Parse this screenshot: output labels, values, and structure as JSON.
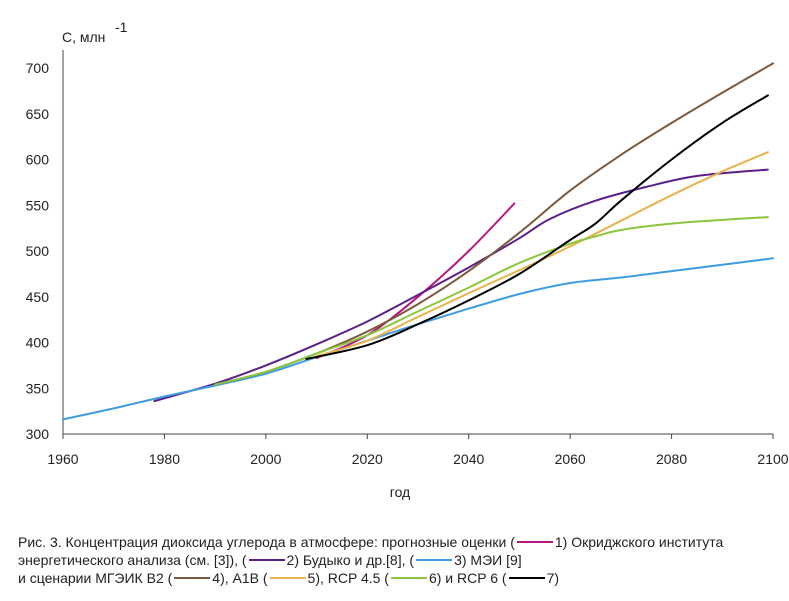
{
  "chart_data": {
    "type": "line",
    "ylabel": "С, млн",
    "ylabel_sup": "-1",
    "xlabel": "год",
    "xlim": [
      1960,
      2100
    ],
    "ylim": [
      300,
      700
    ],
    "xticks": [
      1960,
      1980,
      2000,
      2020,
      2040,
      2060,
      2080,
      2100
    ],
    "yticks": [
      300,
      350,
      400,
      450,
      500,
      550,
      600,
      650,
      700
    ],
    "grid": false,
    "series": [
      {
        "id": "s1",
        "color": "#b5177e",
        "x": [
          2010,
          2020,
          2030,
          2040,
          2049
        ],
        "y": [
          383,
          408,
          450,
          500,
          552
        ]
      },
      {
        "id": "s2",
        "color": "#5b1f8a",
        "x": [
          1978,
          1990,
          2000,
          2010,
          2020,
          2030,
          2040,
          2050,
          2056,
          2065,
          2075,
          2085,
          2099
        ],
        "y": [
          336,
          355,
          375,
          398,
          423,
          452,
          482,
          514,
          535,
          555,
          570,
          582,
          589
        ]
      },
      {
        "id": "s3",
        "color": "#3d9de0",
        "x": [
          1960,
          1970,
          1980,
          1990,
          2000,
          2010,
          2020,
          2030,
          2040,
          2050,
          2060,
          2070,
          2080,
          2090,
          2100
        ],
        "y": [
          316,
          328,
          341,
          353,
          366,
          384,
          402,
          420,
          437,
          453,
          465,
          471,
          478,
          485,
          492
        ]
      },
      {
        "id": "s4",
        "color": "#7b5a3c",
        "x": [
          1990,
          2000,
          2010,
          2020,
          2030,
          2040,
          2050,
          2060,
          2070,
          2080,
          2090,
          2100
        ],
        "y": [
          354,
          368,
          388,
          412,
          442,
          478,
          520,
          566,
          605,
          640,
          673,
          705
        ]
      },
      {
        "id": "s5",
        "color": "#e8b34a",
        "x": [
          2010,
          2020,
          2030,
          2040,
          2050,
          2060,
          2070,
          2080,
          2090,
          2099
        ],
        "y": [
          385,
          402,
          428,
          454,
          479,
          505,
          533,
          561,
          587,
          608
        ]
      },
      {
        "id": "s6",
        "color": "#8cc63f",
        "x": [
          1990,
          2000,
          2010,
          2020,
          2030,
          2040,
          2050,
          2060,
          2065,
          2070,
          2080,
          2090,
          2099
        ],
        "y": [
          354,
          368,
          388,
          408,
          434,
          460,
          487,
          508,
          516,
          523,
          530,
          534,
          537
        ]
      },
      {
        "id": "s7",
        "color": "#000000",
        "x": [
          2008,
          2020,
          2030,
          2040,
          2050,
          2060,
          2065,
          2070,
          2080,
          2090,
          2099
        ],
        "y": [
          382,
          397,
          420,
          446,
          475,
          512,
          530,
          555,
          600,
          640,
          670
        ]
      }
    ]
  },
  "caption": {
    "p1": "Рис. 3. Концентрация диоксида углерода в атмосфере: прогнозные оценки (",
    "l1": "1) Окриджского института энергетического анализа (см. [3]), (",
    "l2": "2) Будыко и др.[8], (",
    "l3": "3) МЭИ [9]",
    "p2": "и сценарии МГЭИК В2 (",
    "l4": "4), А1В (",
    "l5": "5), RCP 4.5 (",
    "l6": "6) и RCP 6 (",
    "l7": "7)"
  }
}
